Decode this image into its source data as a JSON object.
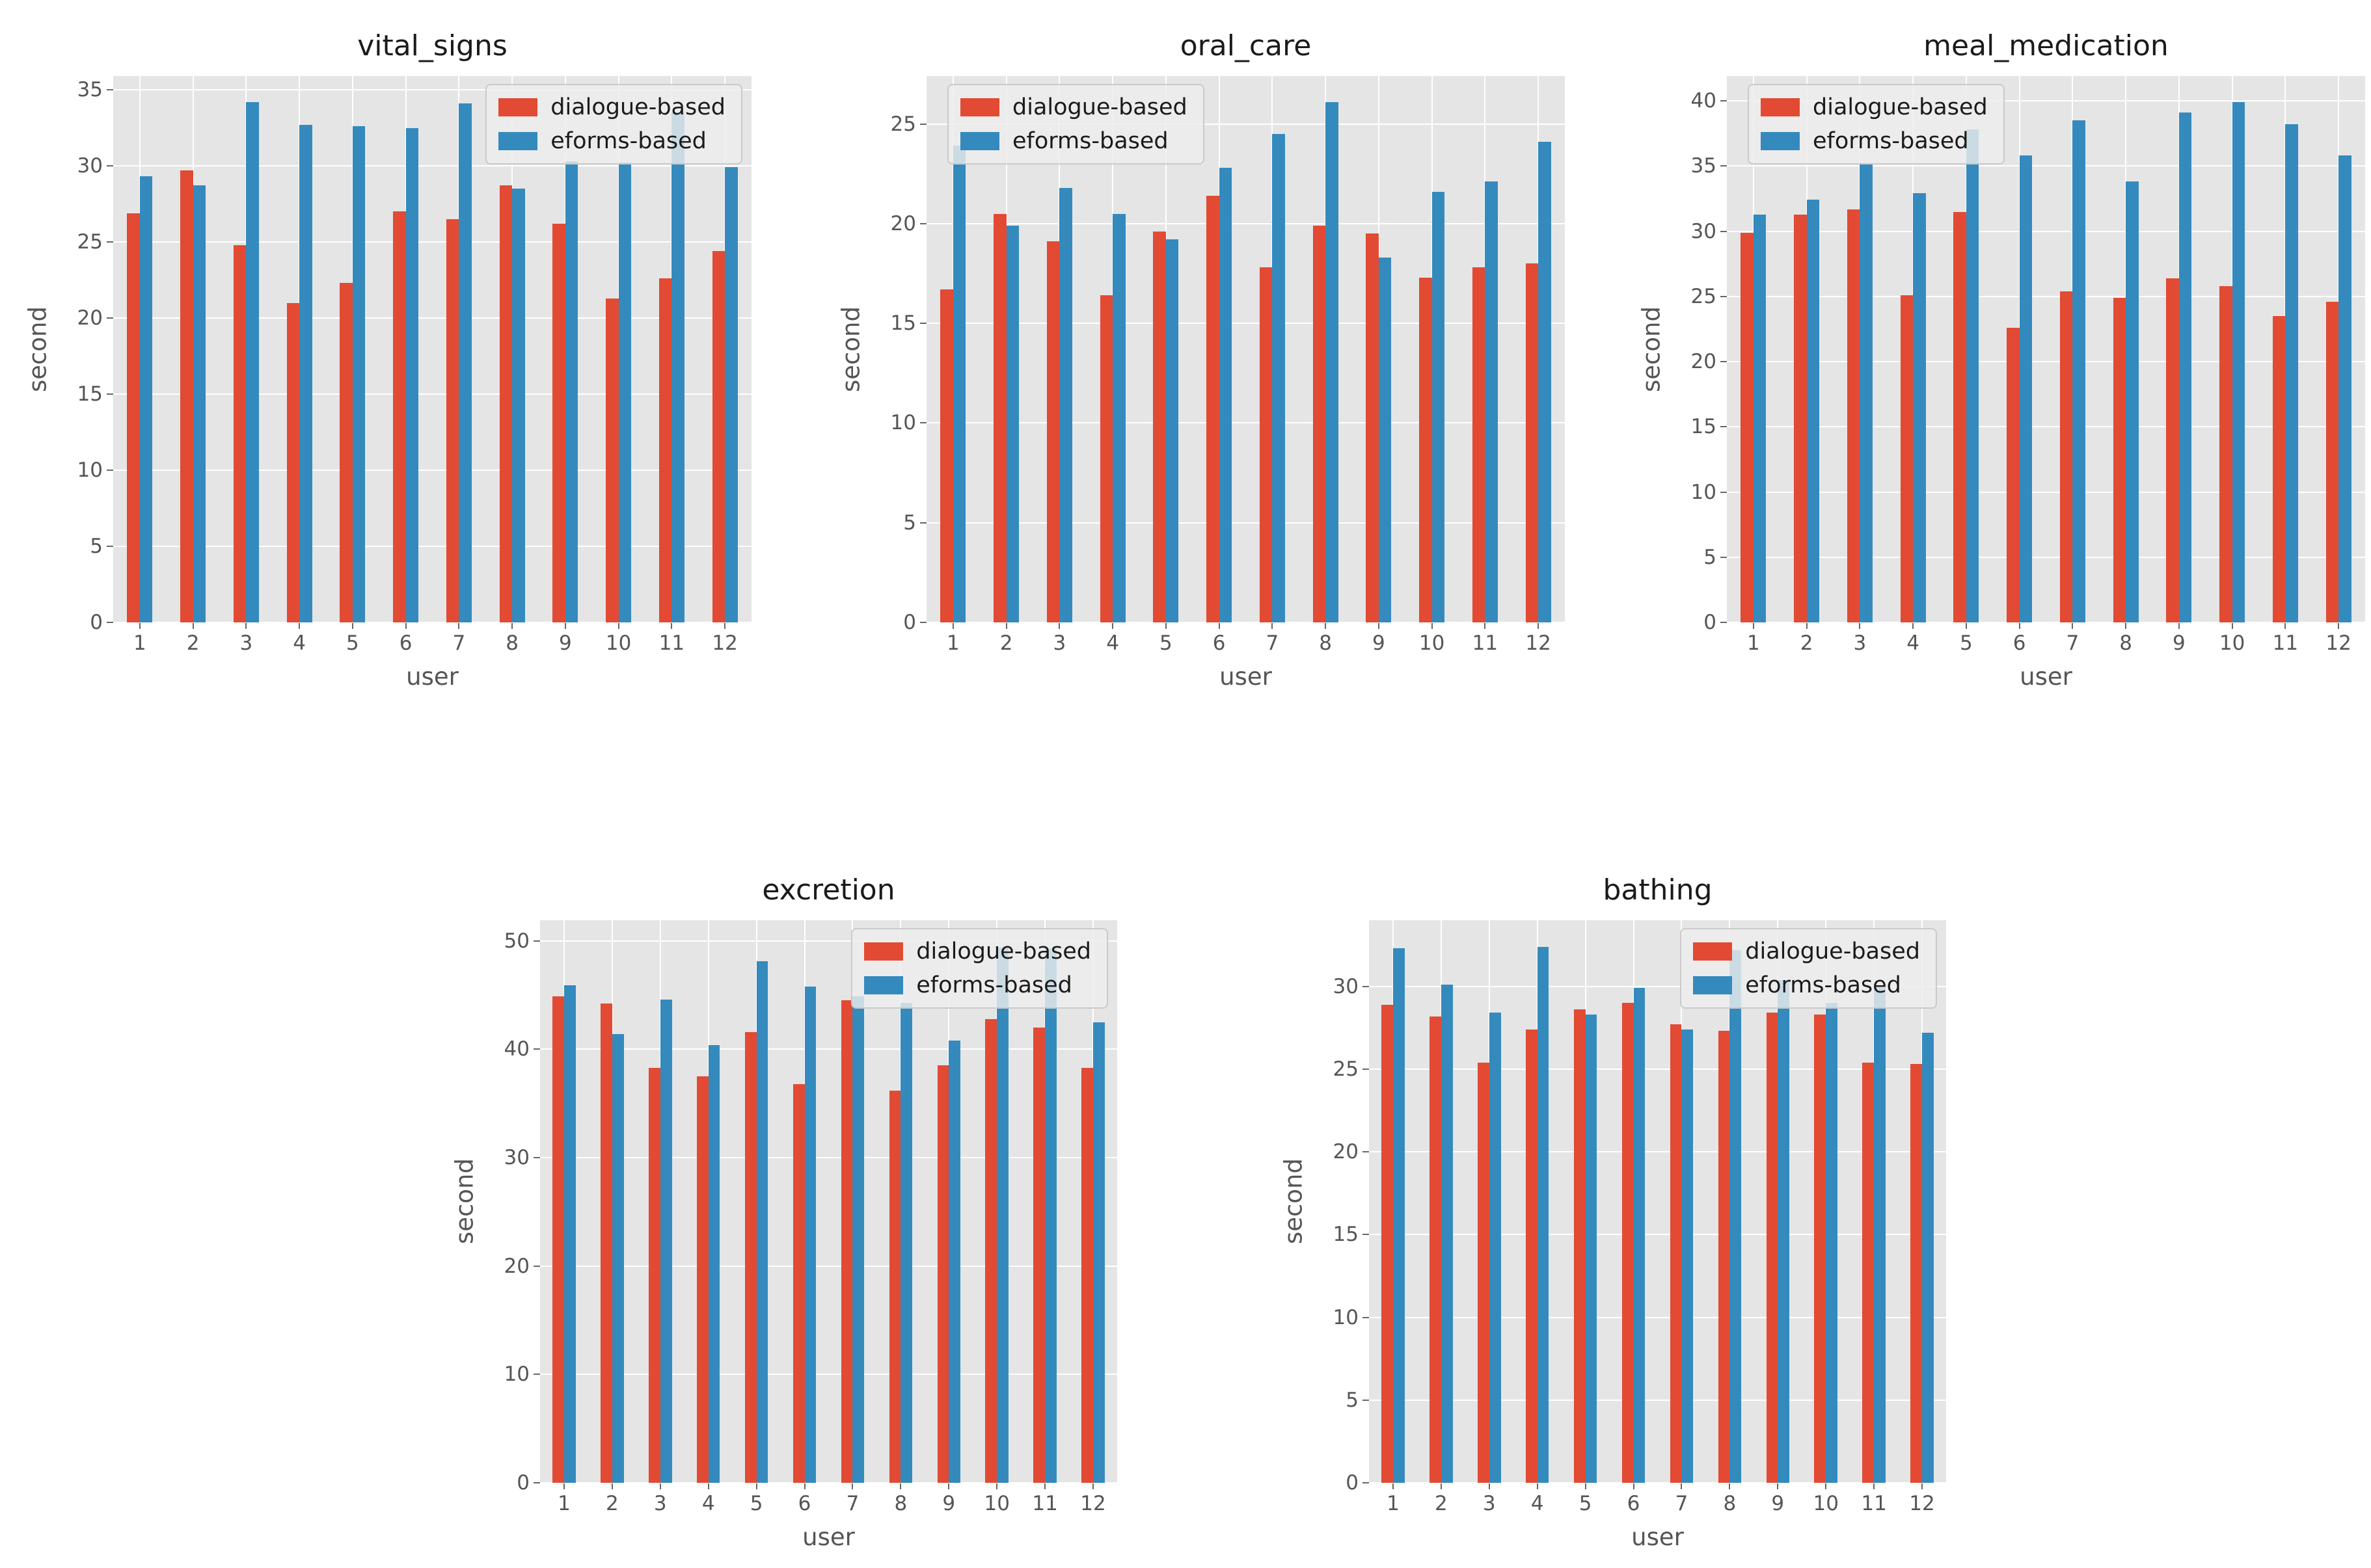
{
  "figure": {
    "background": "#ffffff",
    "axes_background": "#e5e5e5",
    "grid_color": "#ffffff",
    "tick_label_color": "#555555",
    "title_color": "#1b1b1b",
    "series_colors": {
      "dialogue-based": "#e24a33",
      "eforms-based": "#348abd"
    }
  },
  "legend_labels": [
    "dialogue-based",
    "eforms-based"
  ],
  "chart_data": [
    {
      "type": "bar",
      "title": "vital_signs",
      "xlabel": "user",
      "ylabel": "second",
      "categories": [
        "1",
        "2",
        "3",
        "4",
        "5",
        "6",
        "7",
        "8",
        "9",
        "10",
        "11",
        "12"
      ],
      "series": [
        {
          "name": "dialogue-based",
          "color": "#e24a33",
          "values": [
            26.9,
            29.7,
            24.8,
            21.0,
            22.3,
            27.0,
            26.5,
            28.7,
            26.2,
            21.3,
            22.6,
            24.4
          ]
        },
        {
          "name": "eforms-based",
          "color": "#348abd",
          "values": [
            29.3,
            28.7,
            34.2,
            32.7,
            32.6,
            32.5,
            34.1,
            28.5,
            30.3,
            30.2,
            33.5,
            29.9
          ]
        }
      ],
      "ylim": [
        0,
        35.9
      ],
      "yticks": [
        0,
        5,
        10,
        15,
        20,
        25,
        30,
        35
      ],
      "legend_pos": "upper-right",
      "grid": true
    },
    {
      "type": "bar",
      "title": "oral_care",
      "xlabel": "user",
      "ylabel": "second",
      "categories": [
        "1",
        "2",
        "3",
        "4",
        "5",
        "6",
        "7",
        "8",
        "9",
        "10",
        "11",
        "12"
      ],
      "series": [
        {
          "name": "dialogue-based",
          "color": "#e24a33",
          "values": [
            16.7,
            20.5,
            19.1,
            16.4,
            19.6,
            21.4,
            17.8,
            19.9,
            19.5,
            17.3,
            17.8,
            18.0
          ]
        },
        {
          "name": "eforms-based",
          "color": "#348abd",
          "values": [
            23.9,
            19.9,
            21.8,
            20.5,
            19.2,
            22.8,
            24.5,
            26.1,
            18.3,
            21.6,
            22.1,
            24.1
          ]
        }
      ],
      "ylim": [
        0,
        27.4
      ],
      "yticks": [
        0,
        5,
        10,
        15,
        20,
        25
      ],
      "legend_pos": "upper-left",
      "grid": true
    },
    {
      "type": "bar",
      "title": "meal_medication",
      "xlabel": "user",
      "ylabel": "second",
      "categories": [
        "1",
        "2",
        "3",
        "4",
        "5",
        "6",
        "7",
        "8",
        "9",
        "10",
        "11",
        "12"
      ],
      "series": [
        {
          "name": "dialogue-based",
          "color": "#e24a33",
          "values": [
            29.9,
            31.3,
            31.7,
            25.1,
            31.5,
            22.6,
            25.4,
            24.9,
            26.4,
            25.8,
            23.5,
            24.6
          ]
        },
        {
          "name": "eforms-based",
          "color": "#348abd",
          "values": [
            31.3,
            32.4,
            35.2,
            32.9,
            37.8,
            35.8,
            38.5,
            33.8,
            39.1,
            39.9,
            38.2,
            35.8
          ]
        }
      ],
      "ylim": [
        0,
        41.9
      ],
      "yticks": [
        0,
        5,
        10,
        15,
        20,
        25,
        30,
        35,
        40
      ],
      "legend_pos": "upper-left",
      "grid": true
    },
    {
      "type": "bar",
      "title": "excretion",
      "xlabel": "user",
      "ylabel": "second",
      "categories": [
        "1",
        "2",
        "3",
        "4",
        "5",
        "6",
        "7",
        "8",
        "9",
        "10",
        "11",
        "12"
      ],
      "series": [
        {
          "name": "dialogue-based",
          "color": "#e24a33",
          "values": [
            44.9,
            44.2,
            38.3,
            37.5,
            41.6,
            36.8,
            44.5,
            36.2,
            38.5,
            42.8,
            42.0,
            38.3
          ]
        },
        {
          "name": "eforms-based",
          "color": "#348abd",
          "values": [
            45.9,
            41.4,
            44.6,
            40.4,
            48.1,
            45.8,
            44.9,
            44.3,
            40.8,
            49.4,
            49.3,
            42.5
          ]
        }
      ],
      "ylim": [
        0,
        51.9
      ],
      "yticks": [
        0,
        10,
        20,
        30,
        40,
        50
      ],
      "legend_pos": "upper-right",
      "grid": true
    },
    {
      "type": "bar",
      "title": "bathing",
      "xlabel": "user",
      "ylabel": "second",
      "categories": [
        "1",
        "2",
        "3",
        "4",
        "5",
        "6",
        "7",
        "8",
        "9",
        "10",
        "11",
        "12"
      ],
      "series": [
        {
          "name": "dialogue-based",
          "color": "#e24a33",
          "values": [
            28.9,
            28.2,
            25.4,
            27.4,
            28.6,
            29.0,
            27.7,
            27.3,
            28.4,
            28.3,
            25.4,
            25.3
          ]
        },
        {
          "name": "eforms-based",
          "color": "#348abd",
          "values": [
            32.3,
            30.1,
            28.4,
            32.4,
            28.3,
            29.9,
            27.4,
            32.2,
            30.4,
            29.0,
            30.0,
            27.2
          ]
        }
      ],
      "ylim": [
        0,
        34.0
      ],
      "yticks": [
        0,
        5,
        10,
        15,
        20,
        25,
        30
      ],
      "legend_pos": "upper-right",
      "grid": true
    }
  ]
}
